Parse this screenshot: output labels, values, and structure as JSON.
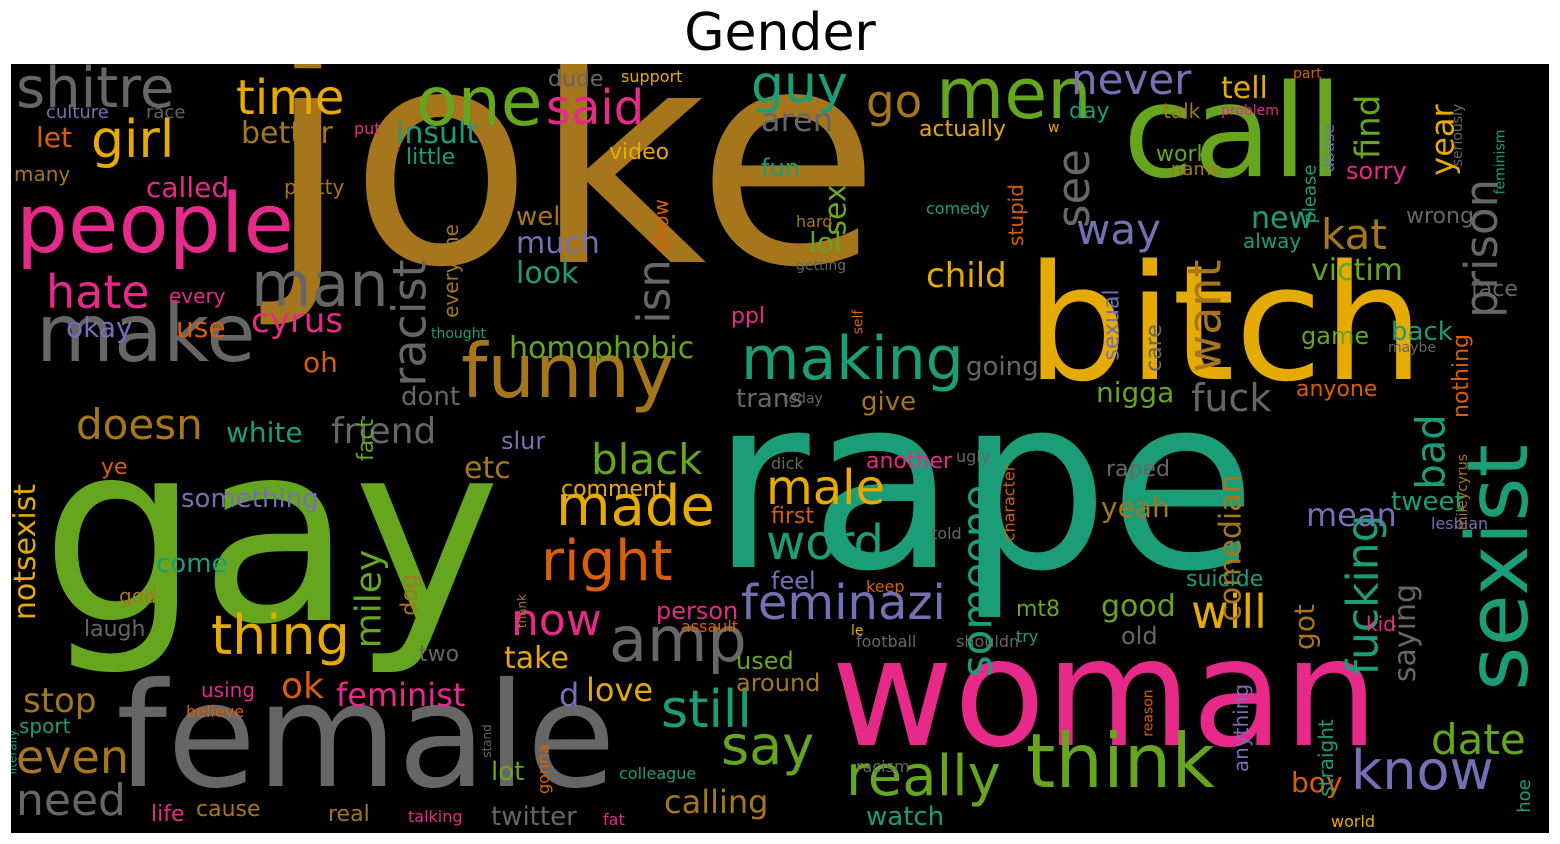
{
  "title": "Gender",
  "palette": {
    "green": "#66a61e",
    "teal": "#1b9e77",
    "orange": "#d95f02",
    "purple": "#7570b3",
    "pink": "#e7298a",
    "yellow": "#e6ab02",
    "brown": "#a6761d",
    "gray": "#666666"
  },
  "words": [
    {
      "text": "joke",
      "color": "#a6761d",
      "vertical": false
    },
    {
      "text": "rape",
      "color": "#1b9e77",
      "vertical": false
    },
    {
      "text": "gay",
      "color": "#66a61e",
      "vertical": false
    },
    {
      "text": "woman",
      "color": "#e7298a",
      "vertical": false
    },
    {
      "text": "bitch",
      "color": "#e6ab02",
      "vertical": false
    },
    {
      "text": "female",
      "color": "#666666",
      "vertical": false
    },
    {
      "text": "call",
      "color": "#66a61e",
      "vertical": false
    },
    {
      "text": "sexist",
      "color": "#1b9e77",
      "vertical": true
    },
    {
      "text": "people",
      "color": "#e7298a",
      "vertical": false
    },
    {
      "text": "make",
      "color": "#666666",
      "vertical": false
    },
    {
      "text": "funny",
      "color": "#a6761d",
      "vertical": false
    },
    {
      "text": "think",
      "color": "#66a61e",
      "vertical": false
    },
    {
      "text": "men",
      "color": "#66a61e",
      "vertical": false
    },
    {
      "text": "one",
      "color": "#66a61e",
      "vertical": false
    },
    {
      "text": "man",
      "color": "#666666",
      "vertical": false
    },
    {
      "text": "amp",
      "color": "#666666",
      "vertical": false
    },
    {
      "text": "making",
      "color": "#1b9e77",
      "vertical": false
    },
    {
      "text": "really",
      "color": "#66a61e",
      "vertical": false
    },
    {
      "text": "made",
      "color": "#e6ab02",
      "vertical": false
    },
    {
      "text": "right",
      "color": "#d95f02",
      "vertical": false
    },
    {
      "text": "thing",
      "color": "#e6ab02",
      "vertical": false
    },
    {
      "text": "feminazi",
      "color": "#7570b3",
      "vertical": false
    },
    {
      "text": "girl",
      "color": "#e6ab02",
      "vertical": false
    },
    {
      "text": "guy",
      "color": "#1b9e77",
      "vertical": false
    },
    {
      "text": "shitre",
      "color": "#666666",
      "vertical": false
    },
    {
      "text": "time",
      "color": "#e6ab02",
      "vertical": false
    },
    {
      "text": "said",
      "color": "#e7298a",
      "vertical": false
    },
    {
      "text": "go",
      "color": "#a6761d",
      "vertical": false
    },
    {
      "text": "never",
      "color": "#7570b3",
      "vertical": false
    },
    {
      "text": "see",
      "color": "#666666",
      "vertical": true
    },
    {
      "text": "prison",
      "color": "#666666",
      "vertical": true
    },
    {
      "text": "hate",
      "color": "#e7298a",
      "vertical": false
    },
    {
      "text": "racist",
      "color": "#666666",
      "vertical": true
    },
    {
      "text": "isn",
      "color": "#666666",
      "vertical": true
    },
    {
      "text": "doesn",
      "color": "#a6761d",
      "vertical": false
    },
    {
      "text": "friend",
      "color": "#666666",
      "vertical": false
    },
    {
      "text": "black",
      "color": "#66a61e",
      "vertical": false
    },
    {
      "text": "male",
      "color": "#e6ab02",
      "vertical": false
    },
    {
      "text": "word",
      "color": "#1b9e77",
      "vertical": false
    },
    {
      "text": "say",
      "color": "#66a61e",
      "vertical": false
    },
    {
      "text": "now",
      "color": "#e7298a",
      "vertical": false
    },
    {
      "text": "still",
      "color": "#1b9e77",
      "vertical": false
    },
    {
      "text": "know",
      "color": "#7570b3",
      "vertical": false
    },
    {
      "text": "will",
      "color": "#e6ab02",
      "vertical": false
    },
    {
      "text": "someone",
      "color": "#1b9e77",
      "vertical": true
    },
    {
      "text": "fucking",
      "color": "#1b9e77",
      "vertical": true
    },
    {
      "text": "bad",
      "color": "#1b9e77",
      "vertical": true
    },
    {
      "text": "want",
      "color": "#a6761d",
      "vertical": true
    },
    {
      "text": "way",
      "color": "#7570b3",
      "vertical": false
    },
    {
      "text": "kat",
      "color": "#a6761d",
      "vertical": false
    },
    {
      "text": "miley",
      "color": "#66a61e",
      "vertical": true
    },
    {
      "text": "even",
      "color": "#a6761d",
      "vertical": false
    },
    {
      "text": "need",
      "color": "#666666",
      "vertical": false
    },
    {
      "text": "date",
      "color": "#66a61e",
      "vertical": false
    },
    {
      "text": "cyrus",
      "color": "#e7298a",
      "vertical": false
    },
    {
      "text": "ok",
      "color": "#d95f02",
      "vertical": false
    },
    {
      "text": "feminist",
      "color": "#e7298a",
      "vertical": false
    },
    {
      "text": "homophobic",
      "color": "#66a61e",
      "vertical": false
    },
    {
      "text": "child",
      "color": "#e6ab02",
      "vertical": false
    },
    {
      "text": "fuck",
      "color": "#666666",
      "vertical": false
    },
    {
      "text": "aren",
      "color": "#666666",
      "vertical": false
    },
    {
      "text": "tell",
      "color": "#e6ab02",
      "vertical": false
    },
    {
      "text": "find",
      "color": "#66a61e",
      "vertical": true
    },
    {
      "text": "year",
      "color": "#e6ab02",
      "vertical": true
    },
    {
      "text": "victim",
      "color": "#66a61e",
      "vertical": false
    },
    {
      "text": "new",
      "color": "#1b9e77",
      "vertical": false
    },
    {
      "text": "better",
      "color": "#a6761d",
      "vertical": false
    },
    {
      "text": "called",
      "color": "#e7298a",
      "vertical": false
    },
    {
      "text": "insult",
      "color": "#1b9e77",
      "vertical": false
    },
    {
      "text": "okay",
      "color": "#7570b3",
      "vertical": false
    },
    {
      "text": "use",
      "color": "#d95f02",
      "vertical": false
    },
    {
      "text": "let",
      "color": "#d95f02",
      "vertical": false
    },
    {
      "text": "oh",
      "color": "#d95f02",
      "vertical": false
    },
    {
      "text": "much",
      "color": "#7570b3",
      "vertical": false
    },
    {
      "text": "look",
      "color": "#1b9e77",
      "vertical": false
    },
    {
      "text": "well",
      "color": "#a6761d",
      "vertical": false
    },
    {
      "text": "lol",
      "color": "#66a61e",
      "vertical": false
    },
    {
      "text": "sex",
      "color": "#66a61e",
      "vertical": true
    },
    {
      "text": "stop",
      "color": "#a6761d",
      "vertical": false
    },
    {
      "text": "etc",
      "color": "#a6761d",
      "vertical": false
    },
    {
      "text": "white",
      "color": "#1b9e77",
      "vertical": false
    },
    {
      "text": "calling",
      "color": "#a6761d",
      "vertical": false
    },
    {
      "text": "good",
      "color": "#66a61e",
      "vertical": false
    },
    {
      "text": "mean",
      "color": "#7570b3",
      "vertical": false
    },
    {
      "text": "saying",
      "color": "#666666",
      "vertical": true
    },
    {
      "text": "comedian",
      "color": "#a6761d",
      "vertical": true
    },
    {
      "text": "nigga",
      "color": "#66a61e",
      "vertical": false
    },
    {
      "text": "yeah",
      "color": "#a6761d",
      "vertical": false
    },
    {
      "text": "love",
      "color": "#e6ab02",
      "vertical": false
    },
    {
      "text": "take",
      "color": "#e6ab02",
      "vertical": false
    },
    {
      "text": "notsexist",
      "color": "#e6ab02",
      "vertical": true
    },
    {
      "text": "something",
      "color": "#7570b3",
      "vertical": false
    },
    {
      "text": "come",
      "color": "#1b9e77",
      "vertical": false
    },
    {
      "text": "twitter",
      "color": "#666666",
      "vertical": false
    },
    {
      "text": "lot",
      "color": "#66a61e",
      "vertical": false
    },
    {
      "text": "watch",
      "color": "#1b9e77",
      "vertical": false
    },
    {
      "text": "boy",
      "color": "#d95f02",
      "vertical": false
    },
    {
      "text": "got",
      "color": "#a6761d",
      "vertical": true
    },
    {
      "text": "tweet",
      "color": "#1b9e77",
      "vertical": false
    },
    {
      "text": "going",
      "color": "#666666",
      "vertical": false
    },
    {
      "text": "give",
      "color": "#a6761d",
      "vertical": false
    },
    {
      "text": "dont",
      "color": "#666666",
      "vertical": false
    },
    {
      "text": "trans",
      "color": "#666666",
      "vertical": false
    },
    {
      "text": "slur",
      "color": "#7570b3",
      "vertical": false
    },
    {
      "text": "comment",
      "color": "#e6ab02",
      "vertical": false
    },
    {
      "text": "person",
      "color": "#e7298a",
      "vertical": false
    },
    {
      "text": "feel",
      "color": "#7570b3",
      "vertical": false
    },
    {
      "text": "used",
      "color": "#66a61e",
      "vertical": false
    },
    {
      "text": "around",
      "color": "#a6761d",
      "vertical": false
    },
    {
      "text": "first",
      "color": "#d95f02",
      "vertical": false
    },
    {
      "text": "another",
      "color": "#e7298a",
      "vertical": false
    },
    {
      "text": "raped",
      "color": "#666666",
      "vertical": false
    },
    {
      "text": "suicide",
      "color": "#1b9e77",
      "vertical": false
    },
    {
      "text": "old",
      "color": "#666666",
      "vertical": false
    },
    {
      "text": "work",
      "color": "#66a61e",
      "vertical": false
    },
    {
      "text": "back",
      "color": "#1b9e77",
      "vertical": false
    },
    {
      "text": "game",
      "color": "#66a61e",
      "vertical": false
    },
    {
      "text": "face",
      "color": "#666666",
      "vertical": false
    },
    {
      "text": "wrong",
      "color": "#666666",
      "vertical": false
    },
    {
      "text": "sorry",
      "color": "#e7298a",
      "vertical": false
    },
    {
      "text": "anyone",
      "color": "#d95f02",
      "vertical": false
    },
    {
      "text": "nothing",
      "color": "#d95f02",
      "vertical": true
    },
    {
      "text": "sexual",
      "color": "#7570b3",
      "vertical": true
    },
    {
      "text": "care",
      "color": "#666666",
      "vertical": true
    },
    {
      "text": "fact",
      "color": "#66a61e",
      "vertical": true
    },
    {
      "text": "dog",
      "color": "#a6761d",
      "vertical": true
    },
    {
      "text": "two",
      "color": "#666666",
      "vertical": false
    },
    {
      "text": "offensive",
      "color": "#1b9e77",
      "vertical": true
    },
    {
      "text": "laugh",
      "color": "#666666",
      "vertical": false
    },
    {
      "text": "god",
      "color": "#a6761d",
      "vertical": false
    },
    {
      "text": "ye",
      "color": "#d95f02",
      "vertical": false
    },
    {
      "text": "sport",
      "color": "#1b9e77",
      "vertical": false
    },
    {
      "text": "using",
      "color": "#e7298a",
      "vertical": false
    },
    {
      "text": "believe",
      "color": "#d95f02",
      "vertical": false
    },
    {
      "text": "d",
      "color": "#7570b3",
      "vertical": false
    },
    {
      "text": "life",
      "color": "#e7298a",
      "vertical": false
    },
    {
      "text": "cause",
      "color": "#a6761d",
      "vertical": false
    },
    {
      "text": "real",
      "color": "#a6761d",
      "vertical": false
    },
    {
      "text": "talking",
      "color": "#e7298a",
      "vertical": false
    },
    {
      "text": "fat",
      "color": "#e7298a",
      "vertical": false
    },
    {
      "text": "colleague",
      "color": "#1b9e77",
      "vertical": false
    },
    {
      "text": "gonna",
      "color": "#d95f02",
      "vertical": true
    },
    {
      "text": "stand",
      "color": "#666666",
      "vertical": true
    },
    {
      "text": "thank",
      "color": "#a6761d",
      "vertical": true
    },
    {
      "text": "assault",
      "color": "#d95f02",
      "vertical": false
    },
    {
      "text": "racism",
      "color": "#666666",
      "vertical": false
    },
    {
      "text": "football",
      "color": "#666666",
      "vertical": false
    },
    {
      "text": "shouldn",
      "color": "#666666",
      "vertical": false
    },
    {
      "text": "le",
      "color": "#e6ab02",
      "vertical": false
    },
    {
      "text": "try",
      "color": "#1b9e77",
      "vertical": false
    },
    {
      "text": "mt8",
      "color": "#66a61e",
      "vertical": false
    },
    {
      "text": "keep",
      "color": "#d95f02",
      "vertical": false
    },
    {
      "text": "told",
      "color": "#666666",
      "vertical": false
    },
    {
      "text": "dick",
      "color": "#666666",
      "vertical": false
    },
    {
      "text": "kid",
      "color": "#e7298a",
      "vertical": false
    },
    {
      "text": "anything",
      "color": "#7570b3",
      "vertical": true
    },
    {
      "text": "straight",
      "color": "#1b9e77",
      "vertical": true
    },
    {
      "text": "reason",
      "color": "#d95f02",
      "vertical": true
    },
    {
      "text": "world",
      "color": "#e6ab02",
      "vertical": false
    },
    {
      "text": "hoe",
      "color": "#1b9e77",
      "vertical": true
    },
    {
      "text": "lesbian",
      "color": "#7570b3",
      "vertical": false
    },
    {
      "text": "mileycyrus",
      "color": "#a6761d",
      "vertical": true
    },
    {
      "text": "character",
      "color": "#d95f02",
      "vertical": true
    },
    {
      "text": "ugly",
      "color": "#666666",
      "vertical": false
    },
    {
      "text": "today",
      "color": "#666666",
      "vertical": false
    },
    {
      "text": "stupid",
      "color": "#d95f02",
      "vertical": true
    },
    {
      "text": "getting",
      "color": "#666666",
      "vertical": false
    },
    {
      "text": "self",
      "color": "#d95f02",
      "vertical": true
    },
    {
      "text": "hard",
      "color": "#a6761d",
      "vertical": false
    },
    {
      "text": "comedy",
      "color": "#1b9e77",
      "vertical": false
    },
    {
      "text": "fun",
      "color": "#1b9e77",
      "vertical": false
    },
    {
      "text": "video",
      "color": "#e6ab02",
      "vertical": false
    },
    {
      "text": "show",
      "color": "#d95f02",
      "vertical": true
    },
    {
      "text": "everyone",
      "color": "#a6761d",
      "vertical": true
    },
    {
      "text": "every",
      "color": "#e7298a",
      "vertical": false
    },
    {
      "text": "ppl",
      "color": "#e7298a",
      "vertical": false
    },
    {
      "text": "thought",
      "color": "#1b9e77",
      "vertical": false
    },
    {
      "text": "pretty",
      "color": "#a6761d",
      "vertical": false
    },
    {
      "text": "put",
      "color": "#e7298a",
      "vertical": false
    },
    {
      "text": "little",
      "color": "#1b9e77",
      "vertical": false
    },
    {
      "text": "many",
      "color": "#a6761d",
      "vertical": false
    },
    {
      "text": "culture",
      "color": "#7570b3",
      "vertical": false
    },
    {
      "text": "race",
      "color": "#666666",
      "vertical": false
    },
    {
      "text": "dude",
      "color": "#666666",
      "vertical": false
    },
    {
      "text": "support",
      "color": "#e6ab02",
      "vertical": false
    },
    {
      "text": "actually",
      "color": "#e6ab02",
      "vertical": false
    },
    {
      "text": "w",
      "color": "#e6ab02",
      "vertical": false
    },
    {
      "text": "day",
      "color": "#1b9e77",
      "vertical": false
    },
    {
      "text": "talk",
      "color": "#a6761d",
      "vertical": false
    },
    {
      "text": "problem",
      "color": "#e7298a",
      "vertical": false
    },
    {
      "text": "part",
      "color": "#d95f02",
      "vertical": false
    },
    {
      "text": "please",
      "color": "#1b9e77",
      "vertical": true
    },
    {
      "text": "abuse",
      "color": "#7570b3",
      "vertical": true
    },
    {
      "text": "seriously",
      "color": "#666666",
      "vertical": true
    },
    {
      "text": "feminism",
      "color": "#1b9e77",
      "vertical": true
    },
    {
      "text": "name",
      "color": "#a6761d",
      "vertical": false
    },
    {
      "text": "alway",
      "color": "#1b9e77",
      "vertical": false
    },
    {
      "text": "maybe",
      "color": "#666666",
      "vertical": false
    },
    {
      "text": "literally",
      "color": "#1b9e77",
      "vertical": true
    }
  ]
}
